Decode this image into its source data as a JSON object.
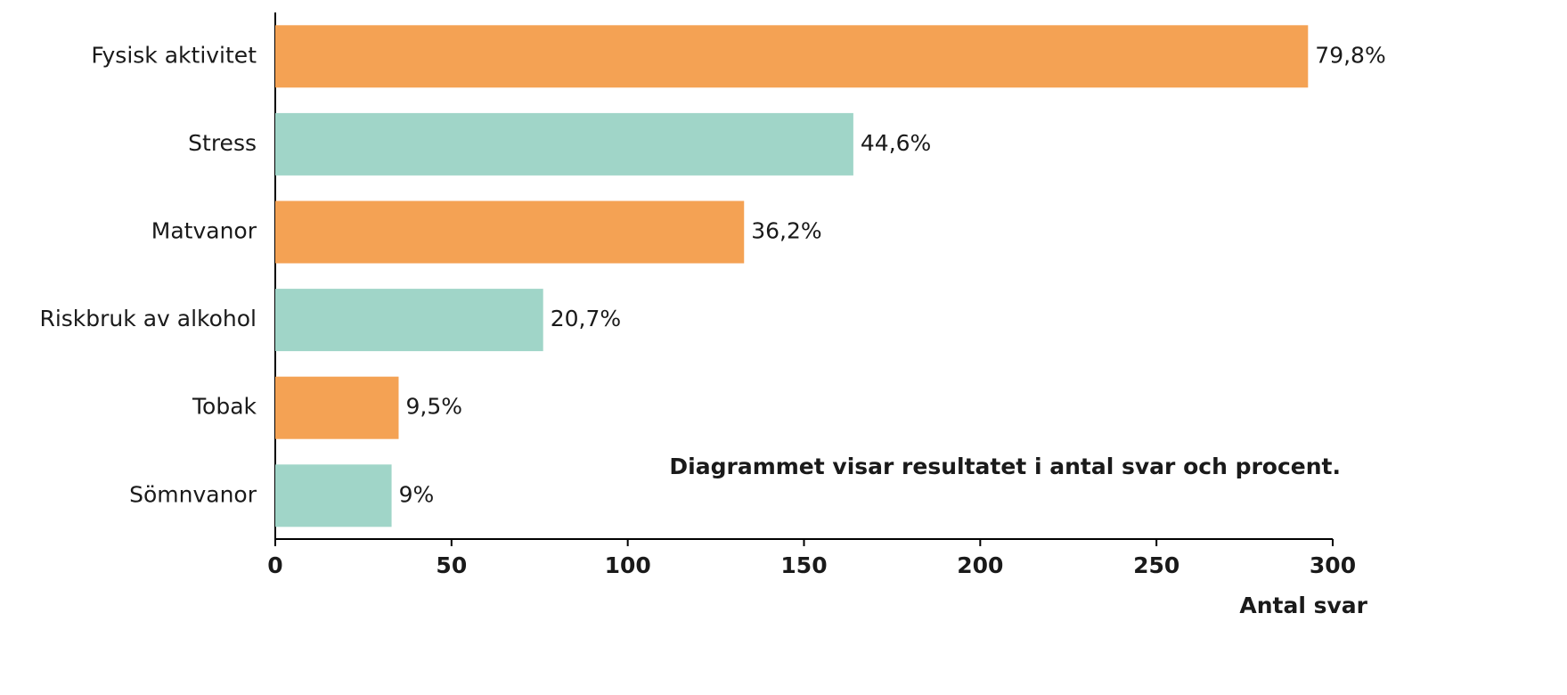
{
  "chart_data": {
    "type": "barh",
    "categories": [
      "Fysisk aktivitet",
      "Stress",
      "Matvanor",
      "Riskbruk av alkohol",
      "Tobak",
      "Sömnvanor"
    ],
    "values": [
      293,
      164,
      133,
      76,
      35,
      33
    ],
    "data_labels": [
      "79,8%",
      "44,6%",
      "36,2%",
      "20,7%",
      "9,5%",
      "9%"
    ],
    "colors": [
      "#f4a254",
      "#a0d5c8",
      "#f4a254",
      "#a0d5c8",
      "#f4a254",
      "#a0d5c8"
    ],
    "xlim": [
      0,
      300
    ],
    "xticks": [
      0,
      50,
      100,
      150,
      200,
      250,
      300
    ],
    "xlabel": "Antal svar",
    "annotation": "Diagrammet visar resultatet i antal svar och procent."
  }
}
